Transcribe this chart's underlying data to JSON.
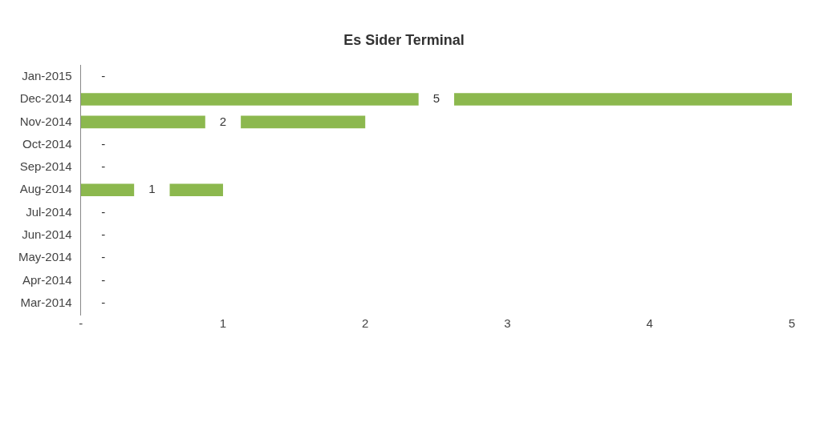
{
  "chart_data": {
    "type": "bar",
    "orientation": "horizontal",
    "title": "Es Sider Terminal",
    "categories": [
      "Jan-2015",
      "Dec-2014",
      "Nov-2014",
      "Oct-2014",
      "Sep-2014",
      "Aug-2014",
      "Jul-2014",
      "Jun-2014",
      "May-2014",
      "Apr-2014",
      "Mar-2014"
    ],
    "values": [
      0,
      5,
      2,
      0,
      0,
      1,
      0,
      0,
      0,
      0,
      0
    ],
    "value_labels": [
      "-",
      "5",
      "2",
      "-",
      "-",
      "1",
      "-",
      "-",
      "-",
      "-",
      "-"
    ],
    "color": "#8cb84e",
    "xlim": [
      0,
      5
    ],
    "xticks": [
      {
        "value": 0,
        "label": "-"
      },
      1,
      2,
      3,
      4,
      5
    ],
    "grid": false,
    "legend": false
  }
}
